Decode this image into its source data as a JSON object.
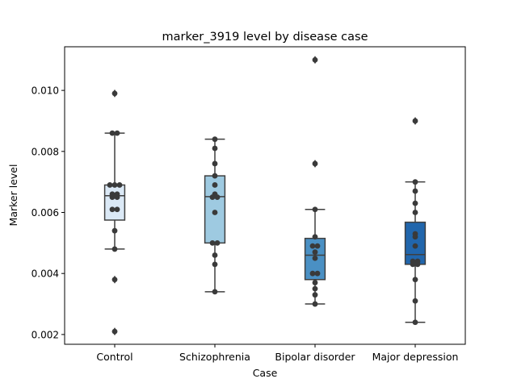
{
  "chart_data": {
    "type": "box",
    "title": "marker_3919 level by disease case",
    "xlabel": "Case",
    "ylabel": "Marker level",
    "ylim": [
      0.00168,
      0.01143
    ],
    "yticks": [
      0.002,
      0.004,
      0.006,
      0.008,
      0.01
    ],
    "ytick_labels": [
      "0.002",
      "0.004",
      "0.006",
      "0.008",
      "0.010"
    ],
    "grid": false,
    "legend": "none",
    "categories": [
      "Control",
      "Schizophrenia",
      "Bipolar disorder",
      "Major depression"
    ],
    "box_colors": [
      "#dbe9f6",
      "#9ecae1",
      "#4a90c4",
      "#2166ac"
    ],
    "boxes": [
      {
        "name": "Control",
        "q1": 0.00575,
        "median": 0.00655,
        "q3": 0.0069,
        "whisker_low": 0.0048,
        "whisker_high": 0.0086,
        "fliers": [
          0.0099,
          0.0038,
          0.0021
        ]
      },
      {
        "name": "Schizophrenia",
        "q1": 0.005,
        "median": 0.00652,
        "q3": 0.0072,
        "whisker_low": 0.0034,
        "whisker_high": 0.0084,
        "fliers": []
      },
      {
        "name": "Bipolar disorder",
        "q1": 0.0038,
        "median": 0.0046,
        "q3": 0.00515,
        "whisker_low": 0.003,
        "whisker_high": 0.0061,
        "fliers": [
          0.011,
          0.0076
        ]
      },
      {
        "name": "Major depression",
        "q1": 0.0043,
        "median": 0.00462,
        "q3": 0.00568,
        "whisker_low": 0.0024,
        "whisker_high": 0.007,
        "fliers": [
          0.009
        ]
      }
    ],
    "points": [
      [
        0.0099,
        0.0086,
        0.0086,
        0.0069,
        0.0069,
        0.0069,
        0.0066,
        0.0066,
        0.0065,
        0.0065,
        0.0061,
        0.0061,
        0.0054,
        0.0048,
        0.0038,
        0.0021
      ],
      [
        0.0084,
        0.0081,
        0.0076,
        0.0072,
        0.0069,
        0.0066,
        0.0065,
        0.0065,
        0.006,
        0.005,
        0.005,
        0.0046,
        0.0043,
        0.0034
      ],
      [
        0.011,
        0.0076,
        0.0061,
        0.0052,
        0.0049,
        0.0049,
        0.0047,
        0.0045,
        0.004,
        0.004,
        0.0037,
        0.0035,
        0.0033,
        0.003
      ],
      [
        0.009,
        0.007,
        0.0067,
        0.0063,
        0.006,
        0.0053,
        0.0052,
        0.0049,
        0.0044,
        0.0044,
        0.0043,
        0.0043,
        0.0038,
        0.0031,
        0.0024
      ]
    ]
  }
}
